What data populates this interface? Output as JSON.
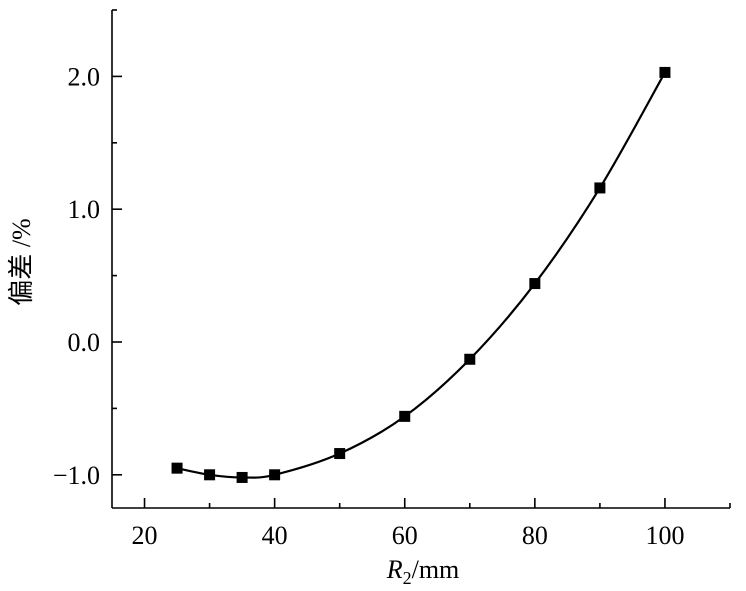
{
  "chart_data": {
    "type": "scatter",
    "title": "",
    "xlabel": {
      "main": "R",
      "sub": "2",
      "unit": "/mm"
    },
    "ylabel": "偏差 /%",
    "xlim": [
      15,
      110
    ],
    "ylim": [
      -1.25,
      2.5
    ],
    "x_ticks": [
      20,
      40,
      60,
      80,
      100
    ],
    "x_tick_labels": [
      "20",
      "40",
      "60",
      "80",
      "100"
    ],
    "y_ticks": [
      -1.0,
      0.0,
      1.0,
      2.0
    ],
    "y_tick_labels": [
      "−1.0",
      "0.0",
      "1.0",
      "2.0"
    ],
    "marker": "square",
    "fit_line": true,
    "grid": false,
    "series": [
      {
        "x": [
          25,
          30,
          35,
          40,
          50,
          60,
          70,
          80,
          90,
          100
        ],
        "y": [
          -0.95,
          -1.0,
          -1.02,
          -1.0,
          -0.84,
          -0.56,
          -0.13,
          0.44,
          1.16,
          2.03
        ]
      }
    ],
    "color": "#000000"
  }
}
